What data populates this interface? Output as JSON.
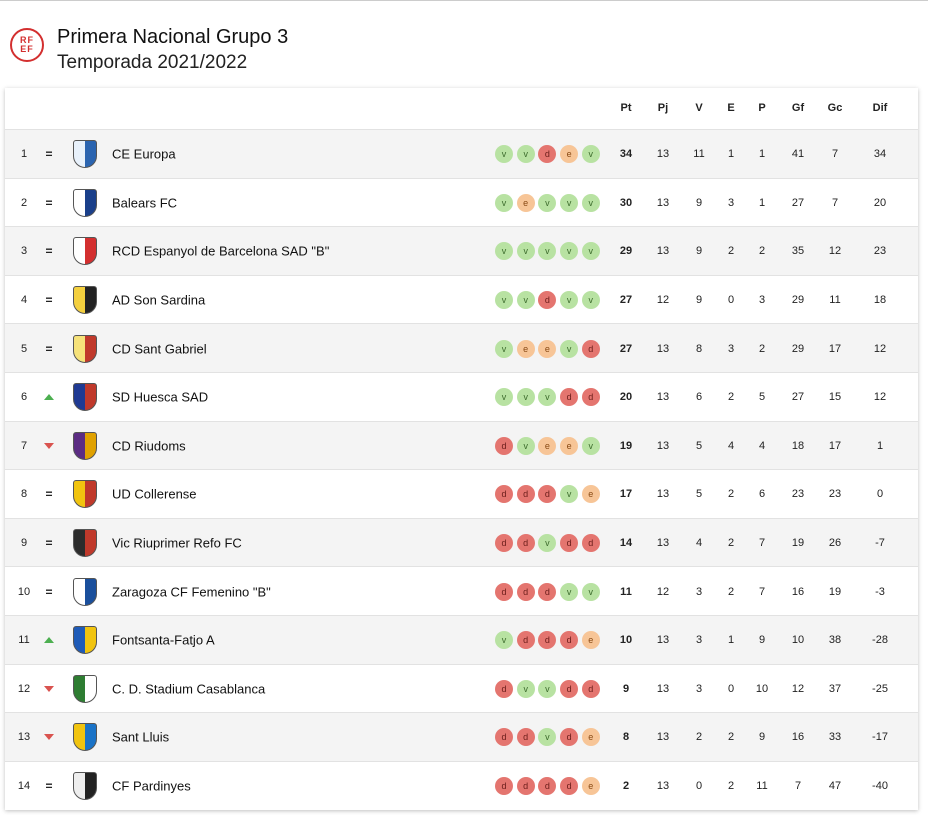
{
  "header": {
    "logo_text": [
      "RF",
      "EF"
    ],
    "title": "Primera Nacional Grupo 3",
    "subtitle": "Temporada 2021/2022"
  },
  "table": {
    "columns": [
      "Pt",
      "Pj",
      "V",
      "E",
      "P",
      "Gf",
      "Gc",
      "Dif"
    ],
    "rows": [
      {
        "position": 1,
        "trend": "=",
        "team": "CE Europa",
        "form": [
          "v",
          "v",
          "d",
          "e",
          "v"
        ],
        "stats": [
          34,
          13,
          11,
          1,
          1,
          41,
          7,
          34
        ]
      },
      {
        "position": 2,
        "trend": "=",
        "team": "Balears FC",
        "form": [
          "v",
          "e",
          "v",
          "v",
          "v"
        ],
        "stats": [
          30,
          13,
          9,
          3,
          1,
          27,
          7,
          20
        ]
      },
      {
        "position": 3,
        "trend": "=",
        "team": "RCD Espanyol de Barcelona SAD \"B\"",
        "form": [
          "v",
          "v",
          "v",
          "v",
          "v"
        ],
        "stats": [
          29,
          13,
          9,
          2,
          2,
          35,
          12,
          23
        ]
      },
      {
        "position": 4,
        "trend": "=",
        "team": "AD Son Sardina",
        "form": [
          "v",
          "v",
          "d",
          "v",
          "v"
        ],
        "stats": [
          27,
          12,
          9,
          0,
          3,
          29,
          11,
          18
        ]
      },
      {
        "position": 5,
        "trend": "=",
        "team": "CD Sant Gabriel",
        "form": [
          "v",
          "e",
          "e",
          "v",
          "d"
        ],
        "stats": [
          27,
          13,
          8,
          3,
          2,
          29,
          17,
          12
        ]
      },
      {
        "position": 6,
        "trend": "up",
        "team": "SD Huesca SAD",
        "form": [
          "v",
          "v",
          "v",
          "d",
          "d"
        ],
        "stats": [
          20,
          13,
          6,
          2,
          5,
          27,
          15,
          12
        ]
      },
      {
        "position": 7,
        "trend": "down",
        "team": "CD Riudoms",
        "form": [
          "d",
          "v",
          "e",
          "e",
          "v"
        ],
        "stats": [
          19,
          13,
          5,
          4,
          4,
          18,
          17,
          1
        ]
      },
      {
        "position": 8,
        "trend": "=",
        "team": "UD Collerense",
        "form": [
          "d",
          "d",
          "d",
          "v",
          "e"
        ],
        "stats": [
          17,
          13,
          5,
          2,
          6,
          23,
          23,
          0
        ]
      },
      {
        "position": 9,
        "trend": "=",
        "team": "Vic Riuprimer Refo FC",
        "form": [
          "d",
          "d",
          "v",
          "d",
          "d"
        ],
        "stats": [
          14,
          13,
          4,
          2,
          7,
          19,
          26,
          -7
        ]
      },
      {
        "position": 10,
        "trend": "=",
        "team": "Zaragoza CF Femenino \"B\"",
        "form": [
          "d",
          "d",
          "d",
          "v",
          "v"
        ],
        "stats": [
          11,
          12,
          3,
          2,
          7,
          16,
          19,
          -3
        ]
      },
      {
        "position": 11,
        "trend": "up",
        "team": "Fontsanta-Fatjo A",
        "form": [
          "v",
          "d",
          "d",
          "d",
          "e"
        ],
        "stats": [
          10,
          13,
          3,
          1,
          9,
          10,
          38,
          -28
        ]
      },
      {
        "position": 12,
        "trend": "down",
        "team": "C. D. Stadium Casablanca",
        "form": [
          "d",
          "v",
          "v",
          "d",
          "d"
        ],
        "stats": [
          9,
          13,
          3,
          0,
          10,
          12,
          37,
          -25
        ]
      },
      {
        "position": 13,
        "trend": "down",
        "team": "Sant Lluis",
        "form": [
          "d",
          "d",
          "v",
          "d",
          "e"
        ],
        "stats": [
          8,
          13,
          2,
          2,
          9,
          16,
          33,
          -17
        ]
      },
      {
        "position": 14,
        "trend": "=",
        "team": "CF Pardinyes",
        "form": [
          "d",
          "d",
          "d",
          "d",
          "e"
        ],
        "stats": [
          2,
          13,
          0,
          2,
          11,
          7,
          47,
          -40
        ]
      }
    ]
  }
}
